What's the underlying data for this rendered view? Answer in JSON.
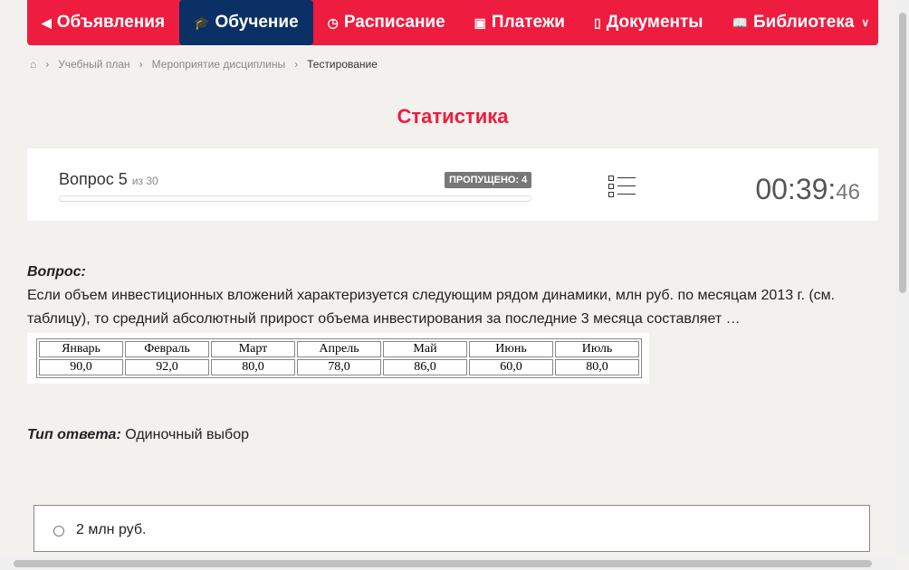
{
  "nav": [
    {
      "label": "Объявления",
      "icon": "megaphone-icon",
      "g": "◀"
    },
    {
      "label": "Обучение",
      "icon": "graduation-cap-icon",
      "g": "🎓",
      "active": true
    },
    {
      "label": "Расписание",
      "icon": "clock-icon",
      "g": "◷"
    },
    {
      "label": "Платежи",
      "icon": "money-icon",
      "g": "▣"
    },
    {
      "label": "Документы",
      "icon": "document-icon",
      "g": "▯"
    },
    {
      "label": "Библиотека",
      "icon": "book-icon",
      "g": "📖",
      "dropdown": true
    }
  ],
  "breadcrumb": [
    "Учебный план",
    "Мероприятие дисциплины",
    "Тестирование"
  ],
  "title": "Статистика",
  "progress": {
    "question_label": "Вопрос 5",
    "of": "из 30",
    "skipped": "ПРОПУЩЕНО: 4",
    "fill_percent": 0
  },
  "timer": {
    "main": "00:39:",
    "seconds": "46"
  },
  "question": {
    "heading": "Вопрос:",
    "text": "Если объем инвестиционных вложений характеризуется следующим рядом динамики, млн руб. по месяцам 2013 г. (см. таблицу), то средний абсолютный прирост объема инвестирования за последние 3 месяца составляет …",
    "table": {
      "headers": [
        "Январь",
        "Февраль",
        "Март",
        "Апрель",
        "Май",
        "Июнь",
        "Июль"
      ],
      "values": [
        "90,0",
        "92,0",
        "80,0",
        "78,0",
        "86,0",
        "60,0",
        "80,0"
      ]
    }
  },
  "answer_type": {
    "label": "Тип ответа:",
    "value": "Одиночный выбор"
  },
  "options": [
    "2 млн руб."
  ]
}
